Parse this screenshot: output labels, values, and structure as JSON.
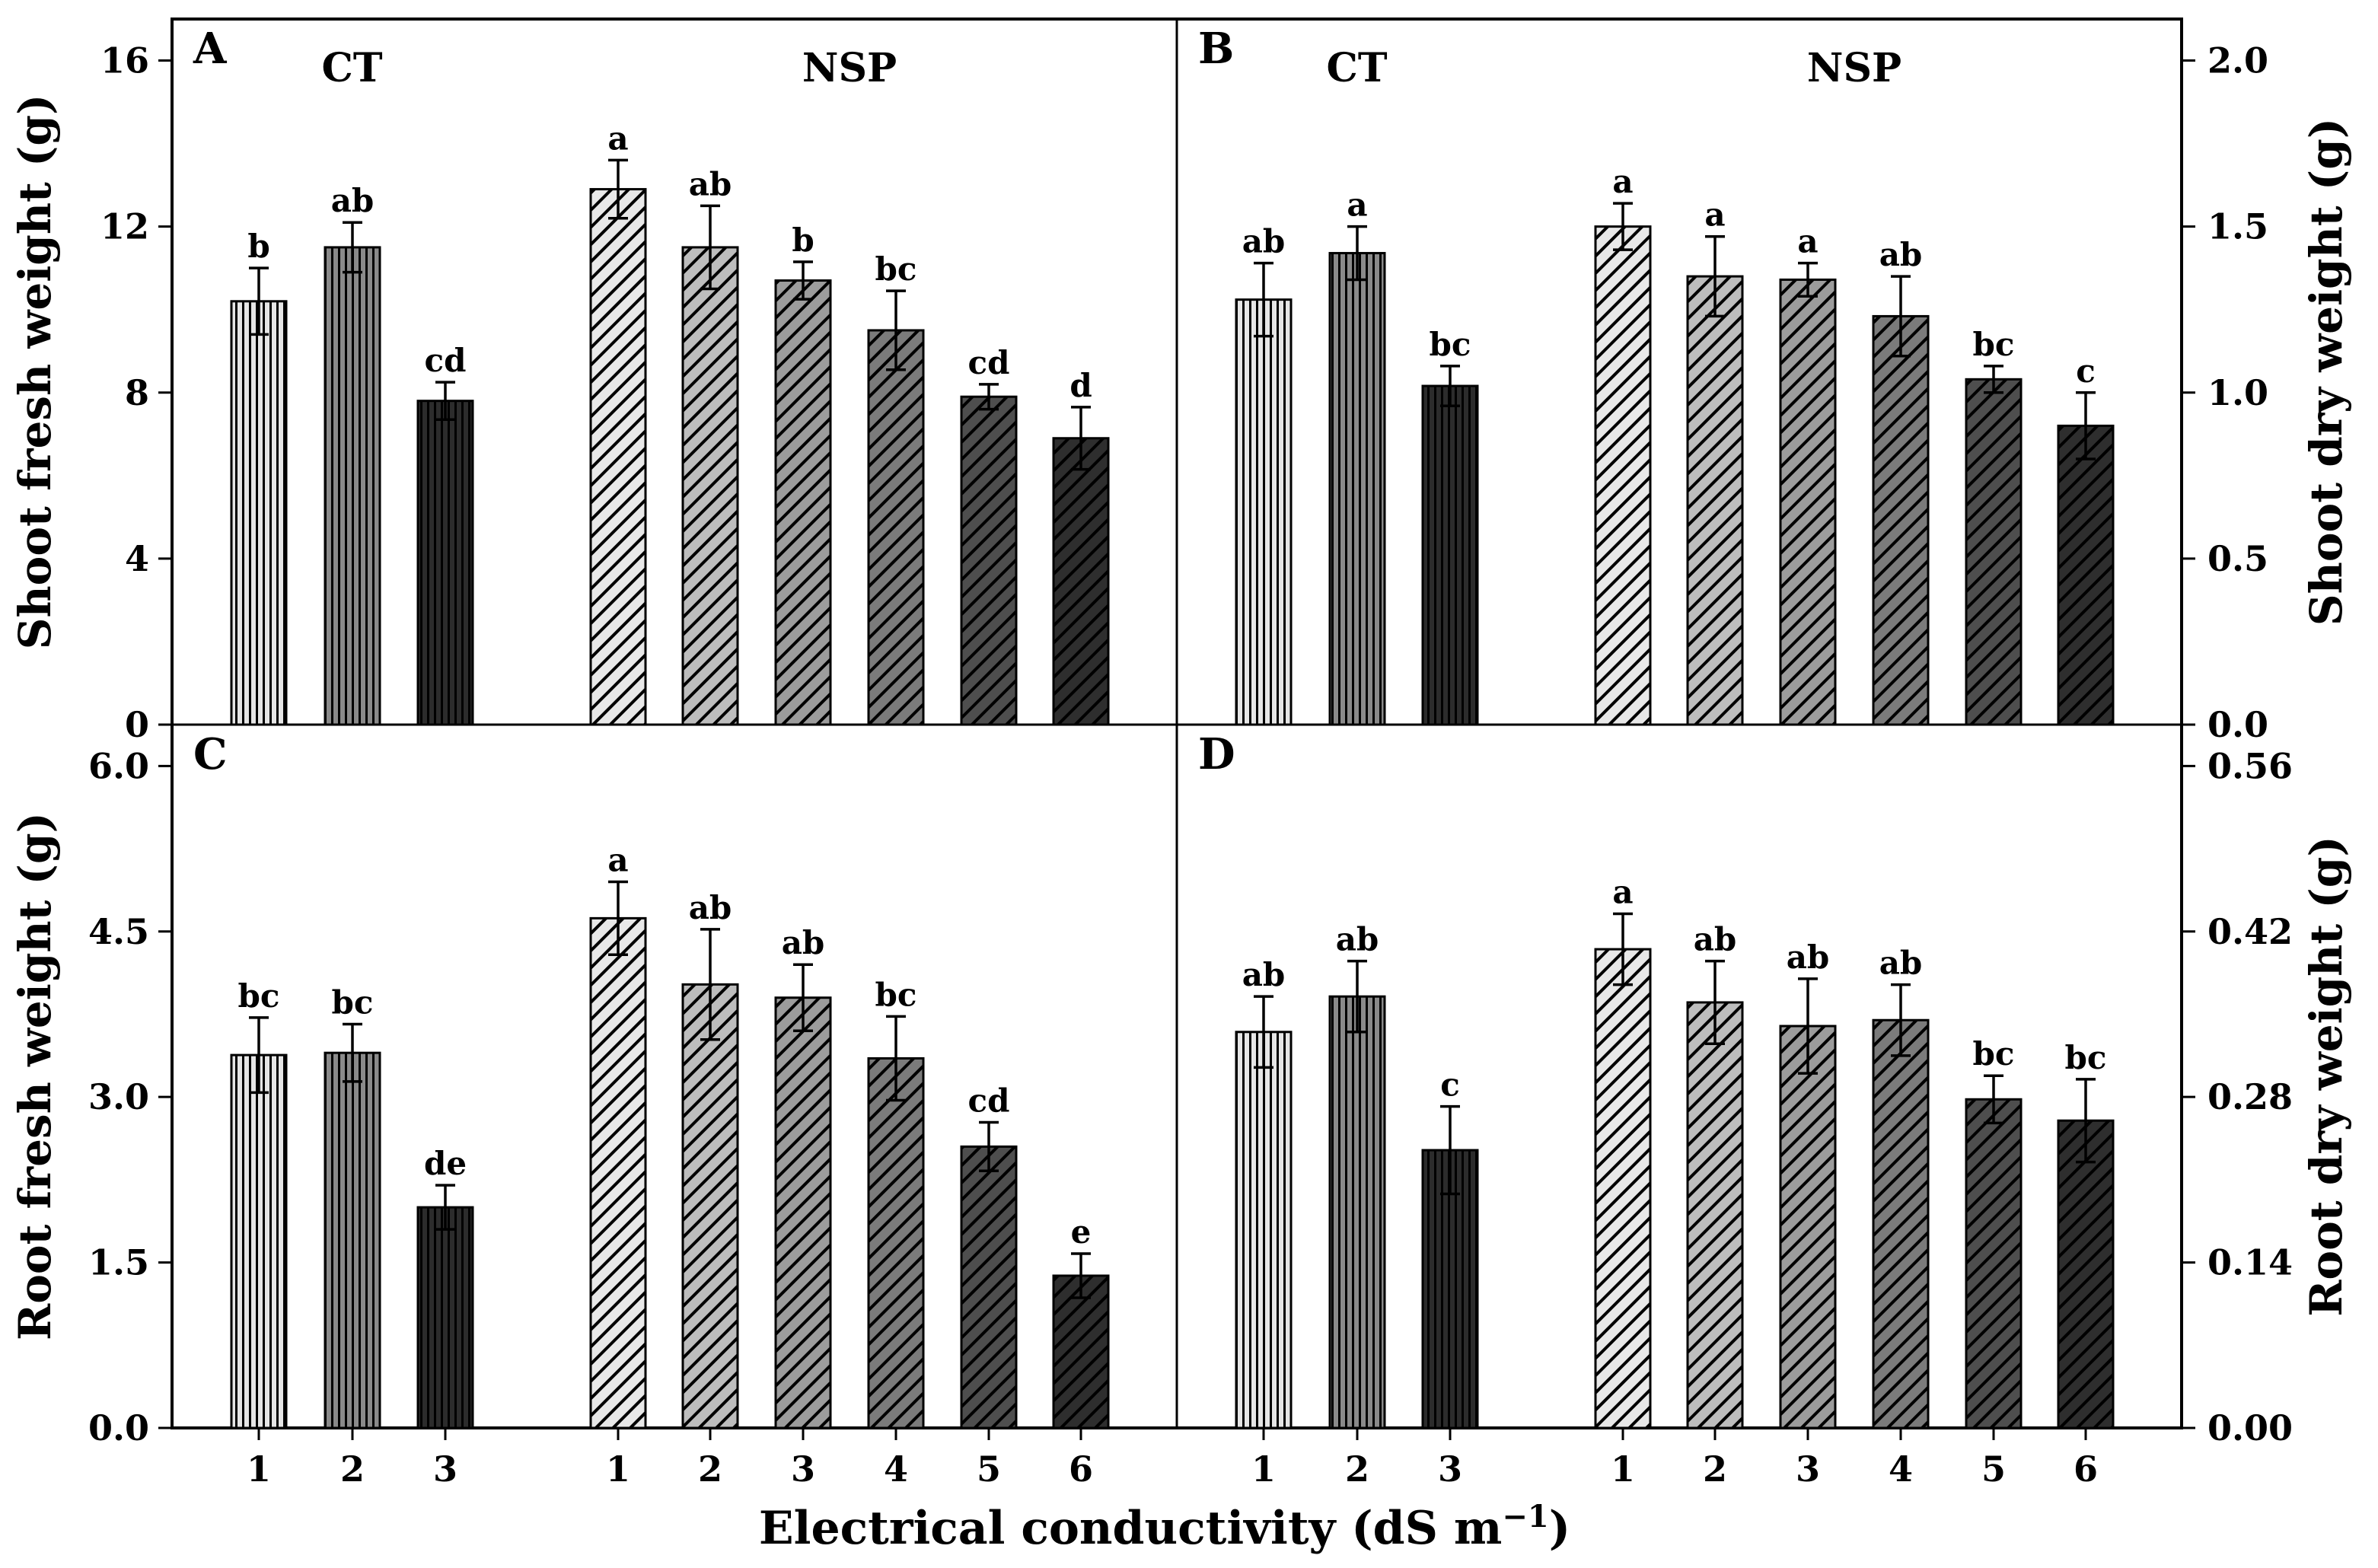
{
  "figure": {
    "xlabel_main": "Electrical conductivity (dS m",
    "xlabel_sup": "−1",
    "xlabel_close": ")"
  },
  "styles": {
    "ct_fills": [
      "#e6e6e6",
      "#8a8a8a",
      "#2c2c2c"
    ],
    "nsp_fills": [
      "#e8e8e8",
      "#bdbdbd",
      "#9c9c9c",
      "#7b7b7b",
      "#4e4e4e",
      "#2e2e2e"
    ],
    "ink": "#000000"
  },
  "chart_data": [
    {
      "id": "A",
      "type": "bar",
      "letter": "A",
      "row": 0,
      "col": 0,
      "axis_side": "left",
      "ylabel": "Shoot fresh weight (g)",
      "ylim": [
        0,
        17
      ],
      "yticks": [
        0,
        4,
        8,
        12,
        16
      ],
      "tick_decimals": 0,
      "groups": [
        {
          "name": "CT",
          "categories": [
            "1",
            "2",
            "3"
          ],
          "values": [
            10.2,
            11.5,
            7.8
          ],
          "errors": [
            0.8,
            0.6,
            0.45
          ],
          "letters": [
            "b",
            "ab",
            "cd"
          ]
        },
        {
          "name": "NSP",
          "categories": [
            "1",
            "2",
            "3",
            "4",
            "5",
            "6"
          ],
          "values": [
            12.9,
            11.5,
            10.7,
            9.5,
            7.9,
            6.9
          ],
          "errors": [
            0.7,
            1.0,
            0.45,
            0.95,
            0.3,
            0.75
          ],
          "letters": [
            "a",
            "ab",
            "b",
            "bc",
            "cd",
            "d"
          ]
        }
      ]
    },
    {
      "id": "B",
      "type": "bar",
      "letter": "B",
      "row": 0,
      "col": 1,
      "axis_side": "right",
      "ylabel": "Shoot dry weight (g)",
      "ylim": [
        0,
        2.125
      ],
      "yticks": [
        0.0,
        0.5,
        1.0,
        1.5,
        2.0
      ],
      "tick_decimals": 1,
      "groups": [
        {
          "name": "CT",
          "categories": [
            "1",
            "2",
            "3"
          ],
          "values": [
            1.28,
            1.42,
            1.02
          ],
          "errors": [
            0.11,
            0.08,
            0.06
          ],
          "letters": [
            "ab",
            "a",
            "bc"
          ]
        },
        {
          "name": "NSP",
          "categories": [
            "1",
            "2",
            "3",
            "4",
            "5",
            "6"
          ],
          "values": [
            1.5,
            1.35,
            1.34,
            1.23,
            1.04,
            0.9
          ],
          "errors": [
            0.07,
            0.12,
            0.05,
            0.12,
            0.04,
            0.1
          ],
          "letters": [
            "a",
            "a",
            "a",
            "ab",
            "bc",
            "c"
          ]
        }
      ]
    },
    {
      "id": "C",
      "type": "bar",
      "letter": "C",
      "row": 1,
      "col": 0,
      "axis_side": "left",
      "ylabel": "Root fresh weight (g)",
      "ylim": [
        0,
        6.375
      ],
      "yticks": [
        0.0,
        1.5,
        3.0,
        4.5,
        6.0
      ],
      "tick_decimals": 1,
      "groups": [
        {
          "name": "",
          "categories": [
            "1",
            "2",
            "3"
          ],
          "values": [
            3.38,
            3.4,
            2.0
          ],
          "errors": [
            0.34,
            0.26,
            0.2
          ],
          "letters": [
            "bc",
            "bc",
            "de"
          ]
        },
        {
          "name": "",
          "categories": [
            "1",
            "2",
            "3",
            "4",
            "5",
            "6"
          ],
          "values": [
            4.62,
            4.02,
            3.9,
            3.35,
            2.55,
            1.38
          ],
          "errors": [
            0.33,
            0.5,
            0.3,
            0.38,
            0.22,
            0.2
          ],
          "letters": [
            "a",
            "ab",
            "ab",
            "bc",
            "cd",
            "e"
          ]
        }
      ]
    },
    {
      "id": "D",
      "type": "bar",
      "letter": "D",
      "row": 1,
      "col": 1,
      "axis_side": "right",
      "ylabel": "Root dry weight (g)",
      "ylim": [
        0,
        0.595
      ],
      "yticks": [
        0.0,
        0.14,
        0.28,
        0.42,
        0.56
      ],
      "tick_decimals": 2,
      "groups": [
        {
          "name": "",
          "categories": [
            "1",
            "2",
            "3"
          ],
          "values": [
            0.335,
            0.365,
            0.235
          ],
          "errors": [
            0.03,
            0.03,
            0.037
          ],
          "letters": [
            "ab",
            "ab",
            "c"
          ]
        },
        {
          "name": "",
          "categories": [
            "1",
            "2",
            "3",
            "4",
            "5",
            "6"
          ],
          "values": [
            0.405,
            0.36,
            0.34,
            0.345,
            0.278,
            0.26
          ],
          "errors": [
            0.03,
            0.035,
            0.04,
            0.03,
            0.02,
            0.035
          ],
          "letters": [
            "a",
            "ab",
            "ab",
            "ab",
            "bc",
            "bc"
          ]
        }
      ]
    }
  ]
}
